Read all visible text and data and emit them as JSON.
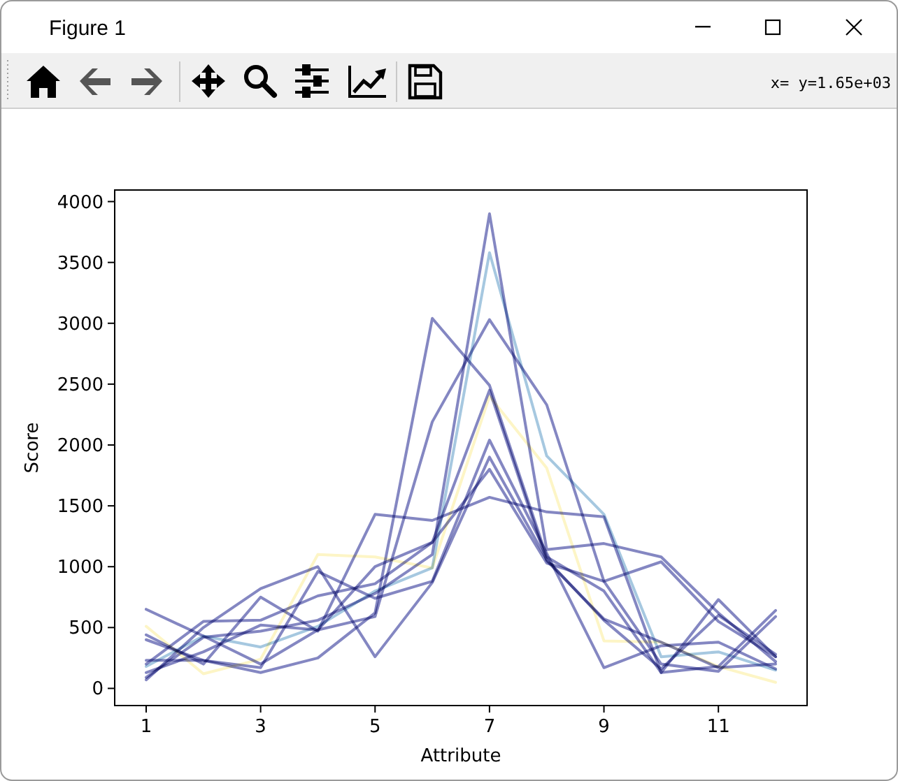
{
  "chart_data": {
    "type": "line",
    "xlabel": "Attribute",
    "ylabel": "Score",
    "annotations": [
      "Figure 1",
      "x= y=1.65e+03"
    ],
    "x": [
      1,
      2,
      3,
      4,
      5,
      6,
      7,
      8,
      9,
      10,
      11,
      12
    ],
    "xlim": [
      0.45,
      12.55
    ],
    "xticks": [
      1,
      3,
      5,
      7,
      9,
      11
    ],
    "ylim": [
      -141,
      4095
    ],
    "yticks": [
      0,
      500,
      1000,
      1500,
      2000,
      2500,
      3000,
      3500,
      4000
    ],
    "series": [
      {
        "color": "#8487c2",
        "values": [
          90,
          420,
          470,
          560,
          780,
          1100,
          3900,
          1140,
          1190,
          1080,
          620,
          220
        ]
      },
      {
        "color": "#a6c8e0",
        "values": [
          180,
          430,
          340,
          510,
          800,
          990,
          3580,
          1910,
          1430,
          260,
          300,
          150
        ]
      },
      {
        "color": "#8487c2",
        "values": [
          130,
          300,
          520,
          480,
          590,
          2190,
          3030,
          2330,
          880,
          200,
          140,
          590
        ]
      },
      {
        "color": "#8487c2",
        "values": [
          400,
          230,
          130,
          250,
          620,
          3040,
          2490,
          1080,
          800,
          130,
          730,
          260
        ]
      },
      {
        "color": "#8487c2",
        "values": [
          650,
          430,
          200,
          480,
          1000,
          1200,
          2450,
          1050,
          570,
          380,
          170,
          200
        ]
      },
      {
        "color": "#fdf5c6",
        "values": [
          510,
          120,
          240,
          1100,
          1080,
          990,
          2400,
          1810,
          390,
          380,
          180,
          50
        ]
      },
      {
        "color": "#8487c2",
        "values": [
          230,
          230,
          170,
          960,
          740,
          880,
          2040,
          1110,
          170,
          350,
          380,
          160
        ]
      },
      {
        "color": "#8487c2",
        "values": [
          70,
          500,
          820,
          1000,
          260,
          870,
          1900,
          1060,
          560,
          160,
          600,
          280
        ]
      },
      {
        "color": "#8487c2",
        "values": [
          200,
          550,
          560,
          760,
          860,
          1200,
          1800,
          1030,
          880,
          1040,
          550,
          260
        ]
      },
      {
        "color": "#8487c2",
        "values": [
          440,
          200,
          750,
          470,
          1430,
          1380,
          1570,
          1450,
          1410,
          130,
          180,
          640
        ]
      }
    ]
  }
}
